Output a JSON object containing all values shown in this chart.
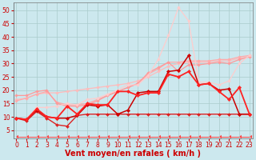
{
  "bg_color": "#cce8ee",
  "grid_color": "#aacccc",
  "xlabel": "Vent moyen/en rafales ( km/h )",
  "xlabel_color": "#cc0000",
  "xlabel_fontsize": 7,
  "tick_color": "#cc0000",
  "tick_fontsize": 5.5,
  "yticks": [
    5,
    10,
    15,
    20,
    25,
    30,
    35,
    40,
    45,
    50
  ],
  "xticks": [
    0,
    1,
    2,
    3,
    4,
    5,
    6,
    7,
    8,
    9,
    10,
    11,
    12,
    13,
    14,
    15,
    16,
    17,
    18,
    19,
    20,
    21,
    22,
    23
  ],
  "ylim": [
    2,
    53
  ],
  "xlim": [
    -0.3,
    23.3
  ],
  "series": [
    {
      "x": [
        0,
        1,
        2,
        3,
        4,
        5,
        6,
        7,
        8,
        9,
        10,
        11,
        12,
        13,
        14,
        15,
        16,
        17,
        18,
        19,
        20,
        21,
        22,
        23
      ],
      "y": [
        16.5,
        17.0,
        18.5,
        19.0,
        19.0,
        19.5,
        20.0,
        20.5,
        21.0,
        21.5,
        22.0,
        22.5,
        23.5,
        25.0,
        27.0,
        29.0,
        30.0,
        30.5,
        30.5,
        30.5,
        31.0,
        31.0,
        32.0,
        32.5
      ],
      "color": "#ffbbbb",
      "lw": 0.9,
      "marker": "D",
      "markersize": 1.8,
      "zorder": 2
    },
    {
      "x": [
        0,
        1,
        2,
        3,
        4,
        5,
        6,
        7,
        8,
        9,
        10,
        11,
        12,
        13,
        14,
        15,
        16,
        17,
        18,
        19,
        20,
        21,
        22,
        23
      ],
      "y": [
        16.0,
        17.0,
        18.5,
        19.5,
        15.5,
        14.5,
        14.5,
        15.0,
        16.5,
        18.0,
        19.5,
        21.0,
        22.5,
        26.0,
        28.0,
        30.5,
        30.5,
        31.0,
        31.0,
        31.0,
        31.5,
        31.5,
        32.5,
        33.0
      ],
      "color": "#ffaaaa",
      "lw": 0.9,
      "marker": "D",
      "markersize": 1.8,
      "zorder": 2
    },
    {
      "x": [
        0,
        1,
        2,
        3,
        4,
        5,
        6,
        7,
        8,
        9,
        10,
        11,
        12,
        13,
        14,
        15,
        16,
        17,
        18,
        19,
        20,
        21,
        22,
        23
      ],
      "y": [
        18.0,
        18.0,
        19.5,
        20.0,
        15.0,
        14.0,
        14.0,
        14.5,
        16.0,
        18.0,
        19.5,
        21.0,
        22.5,
        26.5,
        28.5,
        30.5,
        27.0,
        29.5,
        29.5,
        30.0,
        30.5,
        30.0,
        31.5,
        32.5
      ],
      "color": "#ff9999",
      "lw": 0.9,
      "marker": "D",
      "markersize": 1.8,
      "zorder": 2
    },
    {
      "x": [
        0,
        1,
        2,
        3,
        4,
        5,
        6,
        7,
        8,
        9,
        10,
        11,
        12,
        13,
        14,
        15,
        16,
        17,
        18,
        19,
        20,
        21,
        22,
        23
      ],
      "y": [
        9.5,
        9.0,
        13.5,
        13.5,
        14.0,
        15.0,
        14.5,
        16.5,
        17.0,
        18.5,
        20.0,
        22.0,
        22.0,
        25.5,
        31.5,
        40.5,
        51.0,
        46.0,
        23.0,
        23.0,
        22.0,
        23.5,
        30.0,
        33.0
      ],
      "color": "#ffcccc",
      "lw": 0.9,
      "marker": "D",
      "markersize": 1.8,
      "zorder": 2
    },
    {
      "x": [
        0,
        1,
        2,
        3,
        4,
        5,
        6,
        7,
        8,
        9,
        10,
        11,
        12,
        13,
        14,
        15,
        16,
        17,
        18,
        19,
        20,
        21,
        22,
        23
      ],
      "y": [
        9.5,
        9.0,
        12.5,
        10.0,
        9.5,
        9.5,
        10.5,
        14.5,
        14.0,
        14.5,
        11.0,
        12.5,
        19.0,
        19.5,
        19.5,
        27.0,
        27.5,
        33.0,
        22.0,
        22.5,
        20.0,
        20.5,
        11.0,
        11.0
      ],
      "color": "#cc0000",
      "lw": 1.1,
      "marker": "D",
      "markersize": 2.2,
      "zorder": 4
    },
    {
      "x": [
        0,
        1,
        2,
        3,
        4,
        5,
        6,
        7,
        8,
        9,
        10,
        11,
        12,
        13,
        14,
        15,
        16,
        17,
        18,
        19,
        20,
        21,
        22,
        23
      ],
      "y": [
        9.5,
        8.5,
        12.0,
        9.5,
        7.0,
        6.5,
        10.5,
        11.0,
        11.0,
        11.0,
        11.0,
        11.0,
        11.0,
        11.0,
        11.0,
        11.0,
        11.0,
        11.0,
        11.0,
        11.0,
        11.0,
        11.0,
        11.0,
        11.0
      ],
      "color": "#dd2222",
      "lw": 1.0,
      "marker": "D",
      "markersize": 2.0,
      "zorder": 3
    },
    {
      "x": [
        0,
        1,
        2,
        3,
        4,
        5,
        6,
        7,
        8,
        9,
        10,
        11,
        12,
        13,
        14,
        15,
        16,
        17,
        18,
        19,
        20,
        21,
        22,
        23
      ],
      "y": [
        9.5,
        9.0,
        13.0,
        10.0,
        9.5,
        14.0,
        11.0,
        15.0,
        14.5,
        14.5,
        19.5,
        19.5,
        18.0,
        19.0,
        19.0,
        26.0,
        25.0,
        27.0,
        22.0,
        22.5,
        19.5,
        16.5,
        21.0,
        11.0
      ],
      "color": "#ff2222",
      "lw": 1.3,
      "marker": "D",
      "markersize": 2.2,
      "zorder": 5
    },
    {
      "x": [
        0,
        1,
        2,
        3,
        4,
        5,
        6,
        7,
        8,
        9,
        10,
        11,
        12,
        13,
        14,
        15,
        16,
        17,
        18,
        19,
        20,
        21,
        22,
        23
      ],
      "y": [
        2.5,
        2.5,
        2.5,
        2.5,
        2.5,
        2.5,
        2.5,
        2.5,
        2.5,
        2.5,
        2.5,
        2.5,
        2.5,
        2.5,
        2.5,
        2.5,
        2.5,
        2.5,
        2.5,
        2.5,
        2.5,
        2.5,
        2.5,
        2.5
      ],
      "color": "#ff4444",
      "lw": 0.7,
      "marker": 4,
      "markersize": 3.0,
      "zorder": 1
    }
  ]
}
